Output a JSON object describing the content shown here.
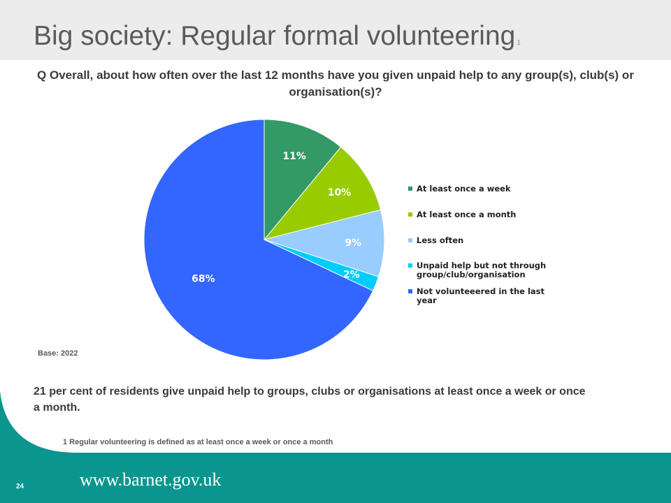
{
  "title": {
    "text": "Big society: Regular formal volunteering",
    "superscript": "1"
  },
  "question": "Q Overall, about how often over the last 12 months have you given unpaid help to any group(s), club(s) or organisation(s)?",
  "base_note": "Base: 2022",
  "summary": "21 per cent of residents give unpaid help to groups, clubs or organisations at least once a week or once a month.",
  "footnote": "1 Regular volunteering is defined as at least  once a week or once a month",
  "footer": {
    "url": "www.barnet.gov.uk",
    "page_number": "24"
  },
  "colors": {
    "footer_band": "#0a958f",
    "top_band": "#ececec"
  },
  "chart_data": {
    "type": "pie",
    "legend_position": "right",
    "slices": [
      {
        "label": "At least once a week",
        "value": 11,
        "display": "11%",
        "color": "#339966"
      },
      {
        "label": "At least once a month",
        "value": 10,
        "display": "10%",
        "color": "#99cc00"
      },
      {
        "label": "Less often",
        "value": 9,
        "display": "9%",
        "color": "#99ccff"
      },
      {
        "label": "Unpaid help but not through group/club/organisation",
        "legend_lines": [
          "Unpaid help but not through",
          "group/club/organisation"
        ],
        "value": 2,
        "display": "2%",
        "color": "#00ccff"
      },
      {
        "label": "Not volunteeered in the last year",
        "legend_lines": [
          "Not volunteeered in the last",
          "year"
        ],
        "value": 68,
        "display": "68%",
        "color": "#3366ff"
      }
    ]
  }
}
